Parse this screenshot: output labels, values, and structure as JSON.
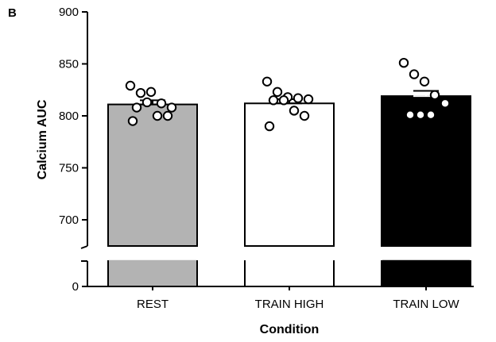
{
  "panel_label": "B",
  "chart_data": {
    "type": "bar",
    "title": "",
    "xlabel": "Condition",
    "ylabel": "Calcium AUC",
    "categories": [
      "REST",
      "TRAIN HIGH",
      "TRAIN LOW"
    ],
    "values": [
      811,
      812,
      819
    ],
    "sem": [
      4,
      4,
      5
    ],
    "bar_colors": [
      "#b3b3b3",
      "#ffffff",
      "#000000"
    ],
    "bar_edge_color": "#000000",
    "points": [
      [
        829,
        822,
        823,
        812,
        808,
        808,
        813,
        800,
        800,
        795
      ],
      [
        833,
        823,
        818,
        817,
        816,
        815,
        815,
        805,
        800,
        790
      ],
      [
        851,
        840,
        833,
        820,
        812,
        801,
        801,
        801
      ]
    ],
    "y_axis": {
      "broken": true,
      "upper_range": [
        670,
        900
      ],
      "upper_ticks": [
        "700",
        "750",
        "800",
        "850",
        "900"
      ],
      "lower_ticks": [
        "0"
      ]
    },
    "grid": false,
    "legend": "none"
  }
}
